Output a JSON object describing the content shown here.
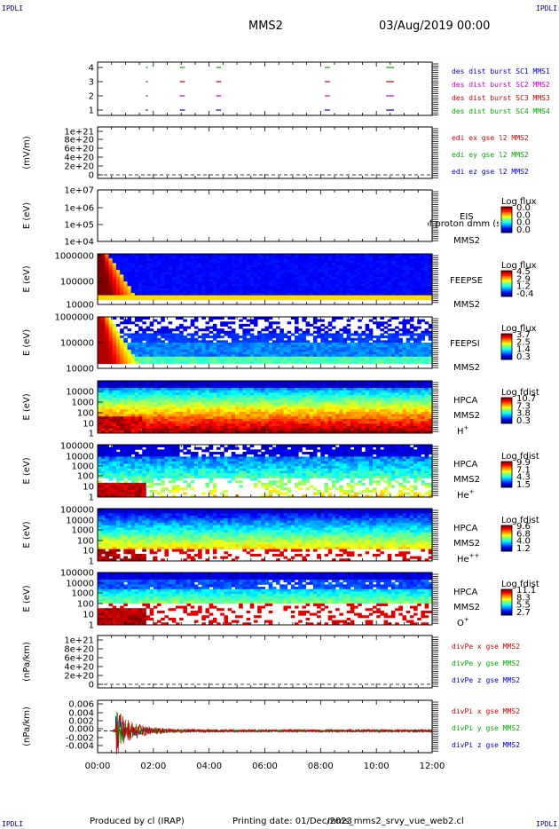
{
  "header": {
    "corner_label": "IPDLI",
    "spacecraft": "MMS2",
    "datetime": "03/Aug/2019 00:00"
  },
  "footer": {
    "produced_by": "Produced by cl (IRAP)",
    "printing_date": "Printing date: 01/Dec/2023",
    "script": "mms_mms2_srvy_vue_web2.cl"
  },
  "chart_data": [
    {
      "id": "burst",
      "type": "scatter",
      "ylabel": "",
      "yticks": [
        "1",
        "2",
        "3",
        "4"
      ],
      "legend": [
        {
          "text": "des dist burst SC1 MMS1",
          "color": "#0000cc"
        },
        {
          "text": "des dist burst SC2 MMS2",
          "color": "#cc00cc"
        },
        {
          "text": "des dist burst SC3 MMS3",
          "color": "#cc0000"
        },
        {
          "text": "des dist burst SC4 MMS4",
          "color": "#00aa00"
        }
      ],
      "series": [
        {
          "level": 4,
          "color": "#00aa00",
          "intervals": [
            [
              1.73,
              1.77
            ],
            [
              2.95,
              3.1
            ],
            [
              4.25,
              4.4
            ],
            [
              8.15,
              8.3
            ],
            [
              10.35,
              10.6
            ]
          ]
        },
        {
          "level": 3,
          "color": "#cc0000",
          "intervals": [
            [
              1.73,
              1.77
            ],
            [
              2.95,
              3.1
            ],
            [
              4.25,
              4.4
            ],
            [
              8.15,
              8.3
            ],
            [
              10.35,
              10.6
            ]
          ]
        },
        {
          "level": 2,
          "color": "#cc00cc",
          "intervals": [
            [
              1.73,
              1.77
            ],
            [
              2.95,
              3.1
            ],
            [
              4.25,
              4.4
            ],
            [
              8.15,
              8.3
            ],
            [
              10.35,
              10.6
            ]
          ]
        },
        {
          "level": 1,
          "color": "#0000cc",
          "intervals": [
            [
              1.73,
              1.77
            ],
            [
              2.95,
              3.1
            ],
            [
              4.25,
              4.4
            ],
            [
              8.15,
              8.3
            ],
            [
              10.35,
              10.6
            ]
          ]
        }
      ]
    },
    {
      "id": "edi",
      "type": "line",
      "ylabel": "(mV/m)",
      "yticks": [
        "1e+21",
        "8e+20",
        "6e+20",
        "4e+20",
        "2e+20",
        "0"
      ],
      "legend": [
        {
          "text": "edi ex gse l2 MMS2",
          "color": "#cc0000"
        },
        {
          "text": "edi ey gse l2 MMS2",
          "color": "#00aa00"
        },
        {
          "text": "edi ez gse l2 MMS2",
          "color": "#0000cc"
        }
      ]
    },
    {
      "id": "eis",
      "type": "heatmap",
      "ylabel": "E (eV)",
      "yticks": [
        "1e+07",
        "1e+06",
        "1e+05",
        "1e+04"
      ],
      "right_labels": [
        "EIS",
        "MMS2"
      ],
      "overlay_text": "phxtof proton dmm  (svy electron to)",
      "colorbar": {
        "title": "Log flux",
        "ticks": [
          "0.0",
          "0.0",
          "0.0",
          "0.0"
        ]
      }
    },
    {
      "id": "feepse",
      "type": "heatmap",
      "ylabel": "E (eV)",
      "yticks": [
        "1000000",
        "100000",
        "10000"
      ],
      "right_labels": [
        "FEEPSE",
        "MMS2"
      ],
      "colorbar": {
        "title": "Log flux",
        "ticks": [
          "4.5",
          "2.9",
          "1.2",
          "-0.4"
        ]
      }
    },
    {
      "id": "feepsi",
      "type": "heatmap",
      "ylabel": "E (eV)",
      "yticks": [
        "1000000",
        "100000",
        "10000"
      ],
      "right_labels": [
        "FEEPSI",
        "MMS2"
      ],
      "colorbar": {
        "title": "Log flux",
        "ticks": [
          "3.7",
          "2.5",
          "1.4",
          "0.3"
        ]
      }
    },
    {
      "id": "hpca_h",
      "type": "heatmap",
      "ylabel": "E (eV)",
      "yticks": [
        "10000",
        "1000",
        "100",
        "10",
        "1"
      ],
      "right_labels": [
        "HPCA",
        "MMS2"
      ],
      "species": "H",
      "species_sup": "+",
      "colorbar": {
        "title": "Log fdist",
        "ticks": [
          "10.7",
          "7.3",
          "3.8",
          "0.3"
        ]
      }
    },
    {
      "id": "hpca_he",
      "type": "heatmap",
      "ylabel": "E (eV)",
      "yticks": [
        "100000",
        "10000",
        "1000",
        "100",
        "10",
        "1"
      ],
      "right_labels": [
        "HPCA",
        "MMS2"
      ],
      "species": "He",
      "species_sup": "+",
      "colorbar": {
        "title": "Log fdist",
        "ticks": [
          "9.9",
          "7.1",
          "4.3",
          "1.5"
        ]
      }
    },
    {
      "id": "hpca_hepp",
      "type": "heatmap",
      "ylabel": "E (eV)",
      "yticks": [
        "100000",
        "10000",
        "1000",
        "100",
        "10",
        "1"
      ],
      "right_labels": [
        "HPCA",
        "MMS2"
      ],
      "species": "He",
      "species_sup": "++",
      "colorbar": {
        "title": "Log fdist",
        "ticks": [
          "9.6",
          "6.8",
          "4.0",
          "1.2"
        ]
      }
    },
    {
      "id": "hpca_o",
      "type": "heatmap",
      "ylabel": "E (eV)",
      "yticks": [
        "100000",
        "10000",
        "1000",
        "100",
        "10",
        "1"
      ],
      "right_labels": [
        "HPCA",
        "MMS2"
      ],
      "species": "O",
      "species_sup": "+",
      "colorbar": {
        "title": "Log fdist",
        "ticks": [
          "11.1",
          "8.3",
          "5.5",
          "2.7"
        ]
      }
    },
    {
      "id": "divpe",
      "type": "line",
      "ylabel": "(nPa/km)",
      "yticks": [
        "1e+21",
        "8e+20",
        "6e+20",
        "4e+20",
        "2e+20",
        "0"
      ],
      "legend": [
        {
          "text": "divPe x gse MMS2",
          "color": "#cc0000"
        },
        {
          "text": "divPe y gse MMS2",
          "color": "#00aa00"
        },
        {
          "text": "divPe z gse MMS2",
          "color": "#0000cc"
        }
      ]
    },
    {
      "id": "divpi",
      "type": "line",
      "ylabel": "(nPa/km)",
      "yticks": [
        "0.006",
        "0.004",
        "0.002",
        "0.000",
        "-0.002",
        "-0.004"
      ],
      "ylim": [
        -0.005,
        0.007
      ],
      "legend": [
        {
          "text": "divPi x gse MMS2",
          "color": "#cc0000"
        },
        {
          "text": "divPi y gse MMS2",
          "color": "#00aa00"
        },
        {
          "text": "divPi z gse MMS2",
          "color": "#0000cc"
        }
      ]
    }
  ],
  "time_axis": {
    "range_hours": [
      0,
      12
    ],
    "tick_labels": [
      "00:00",
      "02:00",
      "04:00",
      "06:00",
      "08:00",
      "10:00",
      "12:00"
    ]
  }
}
